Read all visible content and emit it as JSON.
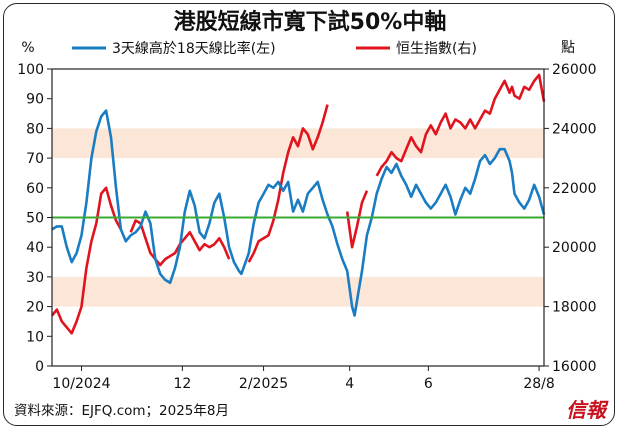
{
  "colors": {
    "breadth": "#1a7cc2",
    "hsi": "#e0141e",
    "threshold": "#3aaa35",
    "band": "#fbe6d8",
    "brand": "#c8101e"
  },
  "chart_data": {
    "type": "line",
    "title": "港股短線市寬下試50%中軸",
    "left_unit": "%",
    "right_unit": "點",
    "ylim_left": [
      0,
      100
    ],
    "ylim_right": [
      16000,
      26000
    ],
    "yticks_left": [
      "0",
      "10",
      "20",
      "30",
      "40",
      "50",
      "60",
      "70",
      "80",
      "90",
      "100"
    ],
    "yticks_right": [
      "16000",
      "18000",
      "20000",
      "22000",
      "24000",
      "26000"
    ],
    "x_tick_labels": [
      {
        "label": "10/2024",
        "t": 0.06
      },
      {
        "label": "12",
        "t": 0.265
      },
      {
        "label": "2/2025",
        "t": 0.43
      },
      {
        "label": "4",
        "t": 0.605
      },
      {
        "label": "6",
        "t": 0.765
      },
      {
        "label": "28/8",
        "t": 0.99
      }
    ],
    "bands": [
      [
        70,
        80
      ],
      [
        20,
        30
      ]
    ],
    "threshold": 50,
    "series": [
      {
        "name": "3天線高於18天線比率(左)",
        "axis": "left",
        "points": [
          [
            0.0,
            46
          ],
          [
            0.01,
            47
          ],
          [
            0.02,
            47
          ],
          [
            0.03,
            40
          ],
          [
            0.04,
            35
          ],
          [
            0.05,
            38
          ],
          [
            0.06,
            44
          ],
          [
            0.07,
            55
          ],
          [
            0.08,
            70
          ],
          [
            0.09,
            79
          ],
          [
            0.1,
            84
          ],
          [
            0.11,
            86
          ],
          [
            0.12,
            77
          ],
          [
            0.13,
            60
          ],
          [
            0.14,
            46
          ],
          [
            0.15,
            42
          ],
          [
            0.16,
            44
          ],
          [
            0.17,
            45
          ],
          [
            0.18,
            47
          ],
          [
            0.19,
            52
          ],
          [
            0.2,
            48
          ],
          [
            0.21,
            36
          ],
          [
            0.22,
            31
          ],
          [
            0.23,
            29
          ],
          [
            0.24,
            28
          ],
          [
            0.25,
            33
          ],
          [
            0.26,
            40
          ],
          [
            0.27,
            52
          ],
          [
            0.28,
            59
          ],
          [
            0.29,
            54
          ],
          [
            0.3,
            45
          ],
          [
            0.31,
            43
          ],
          [
            0.32,
            48
          ],
          [
            0.33,
            55
          ],
          [
            0.34,
            58
          ],
          [
            0.35,
            50
          ],
          [
            0.36,
            40
          ],
          [
            0.37,
            35
          ],
          [
            0.38,
            32
          ],
          [
            0.385,
            31
          ],
          [
            0.4,
            38
          ],
          [
            0.41,
            48
          ],
          [
            0.42,
            55
          ],
          [
            0.43,
            58
          ],
          [
            0.44,
            61
          ],
          [
            0.45,
            60
          ],
          [
            0.46,
            62
          ],
          [
            0.47,
            59
          ],
          [
            0.48,
            62
          ],
          [
            0.49,
            52
          ],
          [
            0.5,
            56
          ],
          [
            0.51,
            52
          ],
          [
            0.52,
            58
          ],
          [
            0.53,
            60
          ],
          [
            0.54,
            62
          ],
          [
            0.55,
            56
          ],
          [
            0.56,
            51
          ],
          [
            0.57,
            47
          ],
          [
            0.58,
            41
          ],
          [
            0.59,
            36
          ],
          [
            0.6,
            32
          ],
          [
            0.61,
            20
          ],
          [
            0.615,
            17
          ],
          [
            0.62,
            22
          ],
          [
            0.63,
            32
          ],
          [
            0.64,
            44
          ],
          [
            0.65,
            50
          ],
          [
            0.66,
            58
          ],
          [
            0.67,
            63
          ],
          [
            0.68,
            67
          ],
          [
            0.69,
            65
          ],
          [
            0.7,
            68
          ],
          [
            0.71,
            64
          ],
          [
            0.72,
            61
          ],
          [
            0.73,
            57
          ],
          [
            0.74,
            61
          ],
          [
            0.75,
            58
          ],
          [
            0.76,
            55
          ],
          [
            0.77,
            53
          ],
          [
            0.78,
            55
          ],
          [
            0.79,
            58
          ],
          [
            0.8,
            61
          ],
          [
            0.81,
            57
          ],
          [
            0.82,
            51
          ],
          [
            0.83,
            56
          ],
          [
            0.84,
            60
          ],
          [
            0.85,
            58
          ],
          [
            0.86,
            63
          ],
          [
            0.87,
            69
          ],
          [
            0.88,
            71
          ],
          [
            0.89,
            68
          ],
          [
            0.9,
            70
          ],
          [
            0.91,
            73
          ],
          [
            0.92,
            73
          ],
          [
            0.93,
            69
          ],
          [
            0.935,
            65
          ],
          [
            0.94,
            58
          ],
          [
            0.95,
            55
          ],
          [
            0.96,
            53
          ],
          [
            0.97,
            56
          ],
          [
            0.98,
            61
          ],
          [
            0.99,
            57
          ],
          [
            1.0,
            51
          ]
        ]
      },
      {
        "name": "恒生指數(右)",
        "axis": "right",
        "points": [
          [
            0.0,
            17700
          ],
          [
            0.01,
            17900
          ],
          [
            0.02,
            17500
          ],
          [
            0.03,
            17300
          ],
          [
            0.04,
            17100
          ],
          [
            0.05,
            17500
          ],
          [
            0.06,
            18000
          ],
          [
            0.07,
            19300
          ],
          [
            0.08,
            20200
          ],
          [
            0.09,
            20800
          ],
          [
            0.1,
            21800
          ],
          [
            0.11,
            22000
          ],
          [
            0.12,
            21400
          ],
          [
            0.13,
            20900
          ],
          [
            0.14,
            20600
          ],
          [
            0.15,
            20700
          ],
          [
            0.16,
            20500
          ],
          [
            0.17,
            20900
          ],
          [
            0.18,
            20800
          ],
          [
            0.19,
            20300
          ],
          [
            0.2,
            19800
          ],
          [
            0.21,
            19600
          ],
          [
            0.22,
            19400
          ],
          [
            0.23,
            19600
          ],
          [
            0.24,
            19700
          ],
          [
            0.25,
            19800
          ],
          [
            0.26,
            20100
          ],
          [
            0.27,
            20300
          ],
          [
            0.28,
            20500
          ],
          [
            0.29,
            20200
          ],
          [
            0.3,
            19900
          ],
          [
            0.31,
            20100
          ],
          [
            0.32,
            20000
          ],
          [
            0.33,
            20100
          ],
          [
            0.34,
            20300
          ],
          [
            0.35,
            20000
          ],
          [
            0.36,
            19600
          ],
          [
            0.37,
            19300
          ],
          [
            0.38,
            18900
          ],
          [
            0.4,
            19500
          ],
          [
            0.41,
            19800
          ],
          [
            0.42,
            20200
          ],
          [
            0.43,
            20300
          ],
          [
            0.44,
            20400
          ],
          [
            0.45,
            20900
          ],
          [
            0.46,
            21600
          ],
          [
            0.47,
            22500
          ],
          [
            0.48,
            23200
          ],
          [
            0.49,
            23700
          ],
          [
            0.5,
            23400
          ],
          [
            0.51,
            24000
          ],
          [
            0.52,
            23800
          ],
          [
            0.53,
            23300
          ],
          [
            0.54,
            23700
          ],
          [
            0.55,
            24200
          ],
          [
            0.56,
            24800
          ],
          [
            0.57,
            23900
          ],
          [
            0.58,
            22600
          ],
          [
            0.59,
            21800
          ],
          [
            0.6,
            21200
          ],
          [
            0.61,
            20000
          ],
          [
            0.62,
            20700
          ],
          [
            0.63,
            21500
          ],
          [
            0.64,
            21900
          ],
          [
            0.65,
            21900
          ],
          [
            0.66,
            22400
          ],
          [
            0.67,
            22700
          ],
          [
            0.68,
            22900
          ],
          [
            0.69,
            23200
          ],
          [
            0.7,
            23000
          ],
          [
            0.71,
            22900
          ],
          [
            0.72,
            23300
          ],
          [
            0.73,
            23700
          ],
          [
            0.74,
            23400
          ],
          [
            0.75,
            23200
          ],
          [
            0.76,
            23800
          ],
          [
            0.77,
            24100
          ],
          [
            0.78,
            23800
          ],
          [
            0.79,
            24200
          ],
          [
            0.8,
            24500
          ],
          [
            0.81,
            24000
          ],
          [
            0.82,
            24300
          ],
          [
            0.83,
            24200
          ],
          [
            0.84,
            24000
          ],
          [
            0.85,
            24300
          ],
          [
            0.86,
            24000
          ],
          [
            0.87,
            24300
          ],
          [
            0.88,
            24600
          ],
          [
            0.89,
            24500
          ],
          [
            0.9,
            25000
          ],
          [
            0.91,
            25300
          ],
          [
            0.92,
            25600
          ],
          [
            0.93,
            25200
          ],
          [
            0.935,
            25400
          ],
          [
            0.94,
            25100
          ],
          [
            0.95,
            25000
          ],
          [
            0.96,
            25400
          ],
          [
            0.97,
            25300
          ],
          [
            0.98,
            25600
          ],
          [
            0.99,
            25800
          ],
          [
            1.0,
            24900
          ]
        ],
        "gaps": [
          [
            0.14,
            0.16
          ],
          [
            0.365,
            0.385
          ],
          [
            0.565,
            0.6
          ],
          [
            0.64,
            0.655
          ]
        ]
      }
    ]
  },
  "footer": {
    "source": "資料來源：EJFQ.com；2025年8月",
    "brand": "信報"
  }
}
